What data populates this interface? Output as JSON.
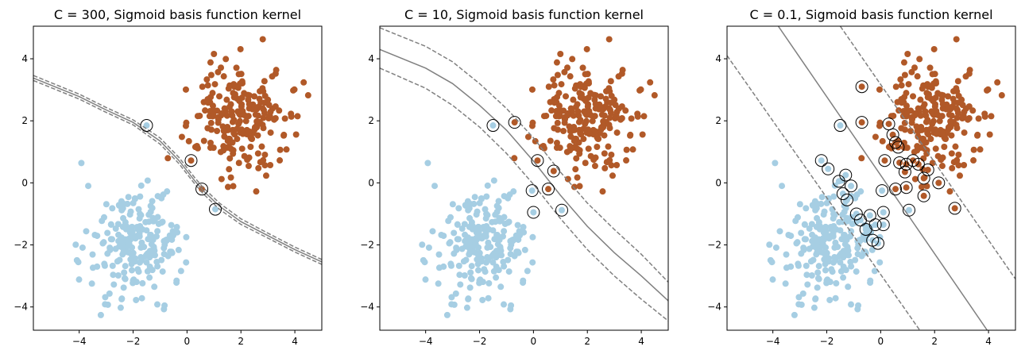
{
  "chart_data": [
    {
      "type": "scatter",
      "title": "C = 300, Sigmoid basis function kernel",
      "xlim": [
        -5.7,
        5.0
      ],
      "ylim": [
        -4.75,
        5.05
      ],
      "xticks": [
        -4,
        -2,
        0,
        2,
        4
      ],
      "yticks": [
        -4,
        -2,
        0,
        2,
        4
      ],
      "xtick_labels": [
        "−4",
        "−2",
        "0",
        "2",
        "4"
      ],
      "ytick_labels": [
        "−4",
        "−2",
        "0",
        "2",
        "4"
      ],
      "grid": false,
      "decision_boundary": [
        [
          -5.7,
          3.38
        ],
        [
          -4,
          2.78
        ],
        [
          -3,
          2.35
        ],
        [
          -2,
          1.95
        ],
        [
          -1,
          1.35
        ],
        [
          -0.3,
          0.72
        ],
        [
          0.3,
          0.05
        ],
        [
          0.6,
          -0.25
        ],
        [
          1.2,
          -0.75
        ],
        [
          2,
          -1.25
        ],
        [
          3,
          -1.7
        ],
        [
          4,
          -2.15
        ],
        [
          5.0,
          -2.55
        ]
      ],
      "margin_upper": [
        [
          -5.7,
          3.46
        ],
        [
          -4,
          2.86
        ],
        [
          -3,
          2.43
        ],
        [
          -2,
          2.03
        ],
        [
          -1,
          1.45
        ],
        [
          -0.3,
          0.82
        ],
        [
          0.3,
          0.15
        ],
        [
          0.6,
          -0.15
        ],
        [
          1.2,
          -0.65
        ],
        [
          2,
          -1.16
        ],
        [
          3,
          -1.62
        ],
        [
          4,
          -2.07
        ],
        [
          5.0,
          -2.47
        ]
      ],
      "margin_lower": [
        [
          -5.7,
          3.3
        ],
        [
          -4,
          2.7
        ],
        [
          -3,
          2.27
        ],
        [
          -2,
          1.87
        ],
        [
          -1,
          1.25
        ],
        [
          -0.3,
          0.62
        ],
        [
          0.3,
          -0.05
        ],
        [
          0.6,
          -0.35
        ],
        [
          1.2,
          -0.85
        ],
        [
          2,
          -1.34
        ],
        [
          3,
          -1.78
        ],
        [
          4,
          -2.23
        ],
        [
          5.0,
          -2.63
        ]
      ],
      "support_vectors": [
        {
          "x": -1.5,
          "y": 1.85,
          "class": 0
        },
        {
          "x": 0.15,
          "y": 0.72,
          "class": 1
        },
        {
          "x": 0.55,
          "y": -0.2,
          "class": 1
        },
        {
          "x": 1.05,
          "y": -0.85,
          "class": 0
        }
      ]
    },
    {
      "type": "scatter",
      "title": "C = 10, Sigmoid basis function kernel",
      "xlim": [
        -5.7,
        5.0
      ],
      "ylim": [
        -4.75,
        5.05
      ],
      "xticks": [
        -4,
        -2,
        0,
        2,
        4
      ],
      "yticks": [
        -4,
        -2,
        0,
        2,
        4
      ],
      "xtick_labels": [
        "−4",
        "−2",
        "0",
        "2",
        "4"
      ],
      "ytick_labels": [
        "−4",
        "−2",
        "0",
        "2",
        "4"
      ],
      "grid": false,
      "decision_boundary": [
        [
          -5.7,
          4.3
        ],
        [
          -4,
          3.7
        ],
        [
          -3,
          3.2
        ],
        [
          -2,
          2.5
        ],
        [
          -1,
          1.7
        ],
        [
          0,
          0.7
        ],
        [
          0.5,
          0.15
        ],
        [
          1,
          -0.4
        ],
        [
          2,
          -1.4
        ],
        [
          3,
          -2.25
        ],
        [
          4,
          -3.0
        ],
        [
          5.0,
          -3.8
        ]
      ],
      "margin_upper": [
        [
          -5.7,
          5.0
        ],
        [
          -4,
          4.4
        ],
        [
          -3,
          3.9
        ],
        [
          -2,
          3.2
        ],
        [
          -1,
          2.4
        ],
        [
          0,
          1.45
        ],
        [
          0.5,
          0.9
        ],
        [
          1,
          0.35
        ],
        [
          2,
          -0.65
        ],
        [
          3,
          -1.5
        ],
        [
          4,
          -2.3
        ],
        [
          5.0,
          -3.2
        ]
      ],
      "margin_lower": [
        [
          -5.7,
          3.7
        ],
        [
          -4,
          3.05
        ],
        [
          -3,
          2.5
        ],
        [
          -2,
          1.8
        ],
        [
          -1,
          0.95
        ],
        [
          0,
          -0.05
        ],
        [
          0.5,
          -0.6
        ],
        [
          1,
          -1.15
        ],
        [
          2,
          -2.15
        ],
        [
          3,
          -3.0
        ],
        [
          4,
          -3.75
        ],
        [
          5.0,
          -4.45
        ]
      ],
      "support_vectors": [
        {
          "x": -1.5,
          "y": 1.85,
          "class": 0
        },
        {
          "x": -0.7,
          "y": 1.95,
          "class": 1
        },
        {
          "x": 0.15,
          "y": 0.72,
          "class": 1
        },
        {
          "x": 0.75,
          "y": 0.38,
          "class": 1
        },
        {
          "x": 0.55,
          "y": -0.2,
          "class": 1
        },
        {
          "x": -0.05,
          "y": -0.25,
          "class": 0
        },
        {
          "x": 0.0,
          "y": -0.95,
          "class": 0
        },
        {
          "x": 1.05,
          "y": -0.88,
          "class": 0
        }
      ]
    },
    {
      "type": "scatter",
      "title": "C = 0.1, Sigmoid basis function kernel",
      "xlim": [
        -5.7,
        5.0
      ],
      "ylim": [
        -4.75,
        5.05
      ],
      "xticks": [
        -4,
        -2,
        0,
        2,
        4
      ],
      "yticks": [
        -4,
        -2,
        0,
        2,
        4
      ],
      "xtick_labels": [
        "−4",
        "−2",
        "0",
        "2",
        "4"
      ],
      "ytick_labels": [
        "−4",
        "−2",
        "0",
        "2",
        "4"
      ],
      "grid": false,
      "decision_boundary": [
        [
          -3.8,
          5.05
        ],
        [
          3.95,
          -4.75
        ]
      ],
      "margin_upper": [
        [
          -1.5,
          5.05
        ],
        [
          5.0,
          -3.1
        ]
      ],
      "margin_lower": [
        [
          -5.7,
          4.1
        ],
        [
          1.45,
          -4.75
        ]
      ],
      "support_vectors": [
        {
          "x": -2.2,
          "y": 0.72,
          "class": 0
        },
        {
          "x": -1.95,
          "y": 0.45,
          "class": 0
        },
        {
          "x": -1.55,
          "y": 0.05,
          "class": 0
        },
        {
          "x": -1.3,
          "y": 0.25,
          "class": 0
        },
        {
          "x": -1.1,
          "y": -0.1,
          "class": 0
        },
        {
          "x": -1.4,
          "y": -0.35,
          "class": 0
        },
        {
          "x": -1.25,
          "y": -0.55,
          "class": 0
        },
        {
          "x": -0.9,
          "y": -1.0,
          "class": 0
        },
        {
          "x": -0.75,
          "y": -1.2,
          "class": 0
        },
        {
          "x": -0.4,
          "y": -1.05,
          "class": 0
        },
        {
          "x": -0.55,
          "y": -1.5,
          "class": 0
        },
        {
          "x": -0.2,
          "y": -1.35,
          "class": 0
        },
        {
          "x": -0.3,
          "y": -1.85,
          "class": 0
        },
        {
          "x": -0.1,
          "y": -1.95,
          "class": 0
        },
        {
          "x": 0.1,
          "y": -1.35,
          "class": 0
        },
        {
          "x": 0.1,
          "y": -0.95,
          "class": 0
        },
        {
          "x": 0.05,
          "y": -0.25,
          "class": 0
        },
        {
          "x": 1.05,
          "y": -0.88,
          "class": 0
        },
        {
          "x": -1.5,
          "y": 1.85,
          "class": 0
        },
        {
          "x": -0.7,
          "y": 1.95,
          "class": 1
        },
        {
          "x": -0.7,
          "y": 3.1,
          "class": 1
        },
        {
          "x": 0.3,
          "y": 1.9,
          "class": 1
        },
        {
          "x": 0.45,
          "y": 1.55,
          "class": 1
        },
        {
          "x": 0.55,
          "y": 1.3,
          "class": 1
        },
        {
          "x": 0.65,
          "y": 1.15,
          "class": 1
        },
        {
          "x": 0.15,
          "y": 0.72,
          "class": 1
        },
        {
          "x": 0.7,
          "y": 0.65,
          "class": 1
        },
        {
          "x": 0.95,
          "y": 0.6,
          "class": 1
        },
        {
          "x": 1.2,
          "y": 0.72,
          "class": 1
        },
        {
          "x": 1.4,
          "y": 0.6,
          "class": 1
        },
        {
          "x": 1.75,
          "y": 0.42,
          "class": 1
        },
        {
          "x": 0.9,
          "y": 0.35,
          "class": 1
        },
        {
          "x": 1.6,
          "y": 0.15,
          "class": 1
        },
        {
          "x": 2.15,
          "y": 0.0,
          "class": 1
        },
        {
          "x": 0.55,
          "y": -0.2,
          "class": 1
        },
        {
          "x": 0.95,
          "y": -0.15,
          "class": 1
        },
        {
          "x": 1.6,
          "y": -0.42,
          "class": 1
        },
        {
          "x": 2.75,
          "y": -0.82,
          "class": 1
        }
      ]
    }
  ],
  "colors": {
    "class_0": "#a6cee3",
    "class_1": "#b15928",
    "boundary": "#808080"
  }
}
